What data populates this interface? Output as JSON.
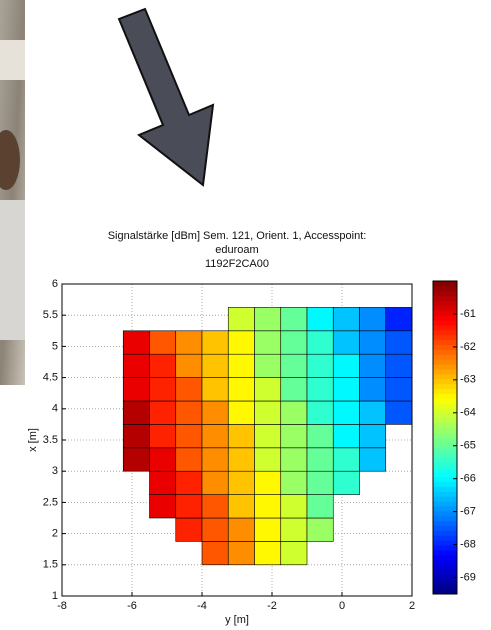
{
  "chart_data": {
    "type": "heatmap",
    "title": [
      "Signalstärke [dBm] Sem. 121, Orient. 1, Accesspoint:",
      "eduroam",
      "1192F2CA00"
    ],
    "x_label": "y [m]",
    "y_label": "x [m]",
    "xlim": [
      -8,
      2
    ],
    "ylim": [
      1,
      6
    ],
    "xticks": [
      -8,
      -6,
      -4,
      -2,
      0,
      2
    ],
    "yticks": [
      1,
      1.5,
      2,
      2.5,
      3,
      3.5,
      4,
      4.5,
      5,
      5.5,
      6
    ],
    "grid": true,
    "colormap": "jet",
    "clim": [
      -69.5,
      -60
    ],
    "colorbar_ticks": [
      -61,
      -62,
      -63,
      -64,
      -65,
      -66,
      -67,
      -68,
      -69
    ],
    "x_edges": [
      -6.25,
      -5.5,
      -4.75,
      -4,
      -3.25,
      -2.5,
      -1.75,
      -1,
      -0.25,
      0.5,
      1.25,
      2
    ],
    "y_edges": [
      1.5,
      1.875,
      2.25,
      2.625,
      3,
      3.375,
      3.75,
      4.125,
      4.5,
      4.875,
      5.25,
      5.625
    ],
    "z": [
      [
        null,
        null,
        null,
        -62,
        -62.5,
        -63.5,
        -64,
        null,
        null,
        null,
        null
      ],
      [
        null,
        null,
        -61.5,
        -62,
        -62.5,
        -63.5,
        -64,
        -64.5,
        null,
        null,
        null
      ],
      [
        null,
        -61,
        -61.5,
        -62,
        -63,
        -63.5,
        -64,
        -65,
        null,
        null,
        null
      ],
      [
        null,
        -61,
        -61.5,
        -62.5,
        -63,
        -63.5,
        -64.5,
        -65,
        -65.5,
        null,
        null
      ],
      [
        -60.5,
        -61,
        -62,
        -62.5,
        -63,
        -64,
        -64.5,
        -65,
        -65.5,
        -66.5,
        null
      ],
      [
        -60.5,
        -61.5,
        -62,
        -62.5,
        -63,
        -64,
        -64.5,
        -65,
        -66,
        -66.5,
        null
      ],
      [
        -60.5,
        -61.5,
        -62,
        -62.5,
        -63.5,
        -64,
        -64.5,
        -65.5,
        -66,
        -66.5,
        -67.5
      ],
      [
        -61,
        -61.5,
        -62,
        -63,
        -63.5,
        -64,
        -65,
        -65.5,
        -66,
        -67,
        -67.5
      ],
      [
        -61,
        -61.5,
        -62.5,
        -63,
        -63.5,
        -64.5,
        -65,
        -65.5,
        -66,
        -67,
        -67.5
      ],
      [
        -61,
        -62,
        -62.5,
        -63,
        -63.5,
        -64.5,
        -65,
        -65.5,
        -66.5,
        -67,
        -67.5
      ],
      [
        null,
        null,
        null,
        null,
        -64,
        -64.5,
        -65,
        -66,
        -66.5,
        -67,
        -68
      ]
    ]
  }
}
